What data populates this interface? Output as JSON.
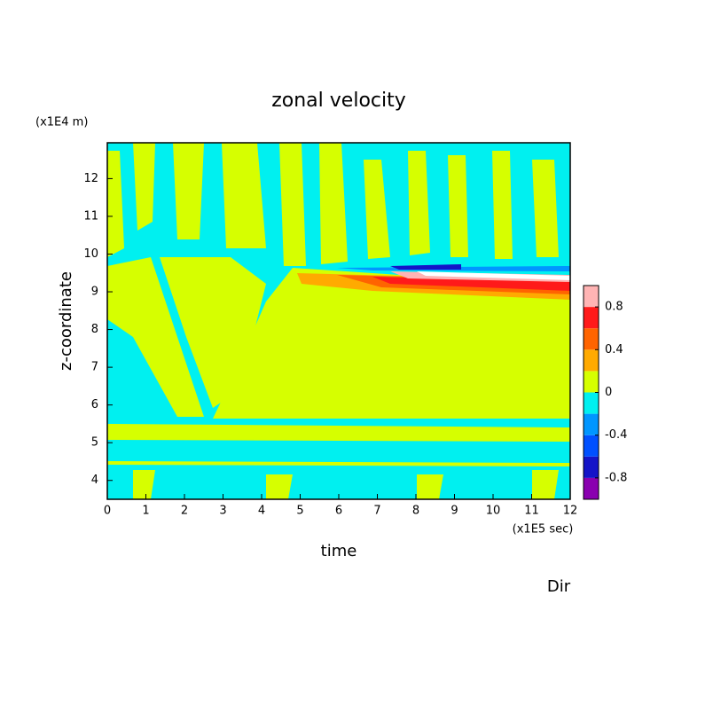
{
  "chart_data": {
    "type": "contour",
    "title": "zonal velocity",
    "xlabel": "time",
    "ylabel": "z-coordinate",
    "x_unit": "(x1E5 sec)",
    "y_unit": "(x1E4 m)",
    "annotation": "Dir",
    "xlim": [
      0,
      12
    ],
    "xticks": [
      0,
      1,
      2,
      3,
      4,
      5,
      6,
      7,
      8,
      9,
      10,
      11,
      12
    ],
    "ylim": [
      3.5,
      12.95
    ],
    "yticks": [
      4,
      5,
      6,
      7,
      8,
      9,
      10,
      11,
      12
    ],
    "colorbar": {
      "levels": [
        -1,
        -0.8,
        -0.6,
        -0.4,
        -0.2,
        0,
        0.2,
        0.4,
        0.6,
        0.8,
        1
      ],
      "colors": [
        "#8a00b0",
        "#1414c8",
        "#0050ff",
        "#0096ff",
        "#00f0f0",
        "#d6ff00",
        "#ffaa00",
        "#ff6400",
        "#ff1a1a",
        "#ffb4b4"
      ],
      "ticks": [
        -0.8,
        -0.4,
        0,
        0.4,
        0.8
      ]
    }
  }
}
